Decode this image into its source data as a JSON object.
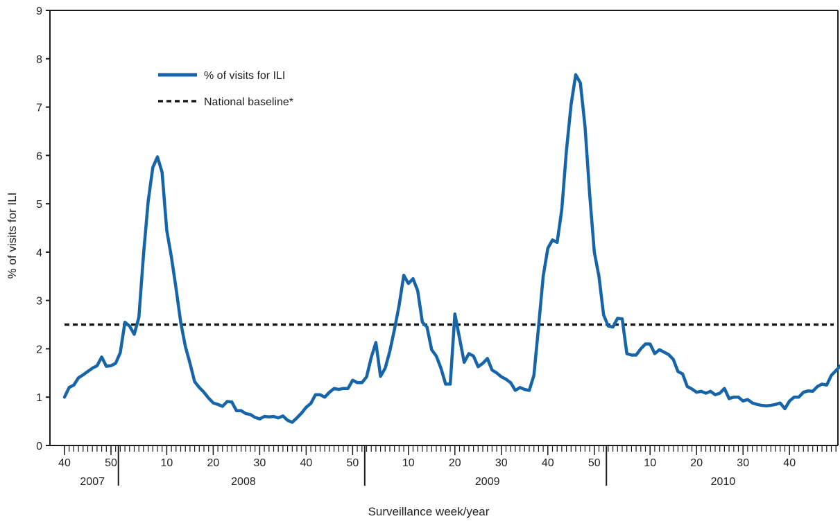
{
  "chart_data": {
    "type": "line",
    "title": "",
    "xlabel": "Surveillance week/year",
    "ylabel": "% of visits for ILI",
    "ylim": [
      0,
      9
    ],
    "y_ticks": [
      "0",
      "1",
      "2",
      "3",
      "4",
      "5",
      "6",
      "7",
      "8",
      "9"
    ],
    "week_tick_labels": [
      {
        "start": 0,
        "label": "40"
      },
      {
        "start": 10,
        "label": "50"
      },
      {
        "start": 22,
        "label": "10"
      },
      {
        "start": 32,
        "label": "20"
      },
      {
        "start": 42,
        "label": "30"
      },
      {
        "start": 52,
        "label": "40"
      },
      {
        "start": 62,
        "label": "50"
      },
      {
        "start": 74,
        "label": "10"
      },
      {
        "start": 84,
        "label": "20"
      },
      {
        "start": 94,
        "label": "30"
      },
      {
        "start": 104,
        "label": "40"
      },
      {
        "start": 114,
        "label": "50"
      },
      {
        "start": 126,
        "label": "10"
      },
      {
        "start": 136,
        "label": "20"
      },
      {
        "start": 146,
        "label": "30"
      },
      {
        "start": 156,
        "label": "40"
      }
    ],
    "year_labels": [
      {
        "start": 0,
        "end": 12,
        "label": "2007"
      },
      {
        "start": 12,
        "end": 65,
        "label": "2008"
      },
      {
        "start": 65,
        "end": 117,
        "label": "2009"
      },
      {
        "start": 117,
        "end": 169,
        "label": "2010"
      }
    ],
    "x_start": "2007 week 40",
    "x_end": "2010 week 52",
    "series": [
      {
        "name": "% of visits for ILI",
        "color": "#1565a8",
        "style": "solid",
        "values": [
          1.0,
          1.2,
          1.25,
          1.4,
          1.46,
          1.53,
          1.6,
          1.65,
          1.83,
          1.64,
          1.65,
          1.7,
          1.92,
          2.55,
          2.47,
          2.3,
          2.65,
          3.95,
          5.05,
          5.75,
          5.97,
          5.65,
          4.45,
          3.9,
          3.25,
          2.55,
          2.05,
          1.7,
          1.32,
          1.2,
          1.1,
          0.98,
          0.88,
          0.85,
          0.81,
          0.91,
          0.9,
          0.72,
          0.72,
          0.66,
          0.64,
          0.58,
          0.55,
          0.6,
          0.59,
          0.6,
          0.57,
          0.61,
          0.52,
          0.48,
          0.57,
          0.67,
          0.79,
          0.87,
          1.05,
          1.05,
          1.0,
          1.1,
          1.18,
          1.16,
          1.18,
          1.18,
          1.35,
          1.3,
          1.3,
          1.42,
          1.82,
          2.13,
          1.43,
          1.6,
          1.95,
          2.4,
          2.9,
          3.52,
          3.35,
          3.45,
          3.2,
          2.55,
          2.45,
          1.98,
          1.85,
          1.6,
          1.27,
          1.27,
          2.72,
          2.22,
          1.72,
          1.9,
          1.85,
          1.63,
          1.7,
          1.8,
          1.56,
          1.5,
          1.42,
          1.37,
          1.3,
          1.14,
          1.2,
          1.16,
          1.14,
          1.45,
          2.45,
          3.5,
          4.08,
          4.25,
          4.2,
          4.88,
          6.1,
          7.05,
          7.67,
          7.5,
          6.6,
          5.2,
          4.0,
          3.5,
          2.7,
          2.47,
          2.45,
          2.63,
          2.62,
          1.9,
          1.87,
          1.87,
          2.0,
          2.1,
          2.1,
          1.9,
          1.98,
          1.93,
          1.88,
          1.78,
          1.53,
          1.48,
          1.22,
          1.17,
          1.1,
          1.12,
          1.08,
          1.12,
          1.05,
          1.08,
          1.18,
          0.97,
          1.0,
          1.0,
          0.92,
          0.95,
          0.88,
          0.85,
          0.83,
          0.82,
          0.83,
          0.85,
          0.88,
          0.76,
          0.92,
          1.0,
          1.0,
          1.1,
          1.13,
          1.12,
          1.22,
          1.27,
          1.25,
          1.45,
          1.55,
          1.65,
          1.86,
          1.72,
          1.82
        ]
      },
      {
        "name": "National baseline*",
        "color": "#1a1a1a",
        "style": "dashed",
        "values": [
          2.5
        ]
      }
    ],
    "legend_position": "upper-left",
    "grid": false
  }
}
